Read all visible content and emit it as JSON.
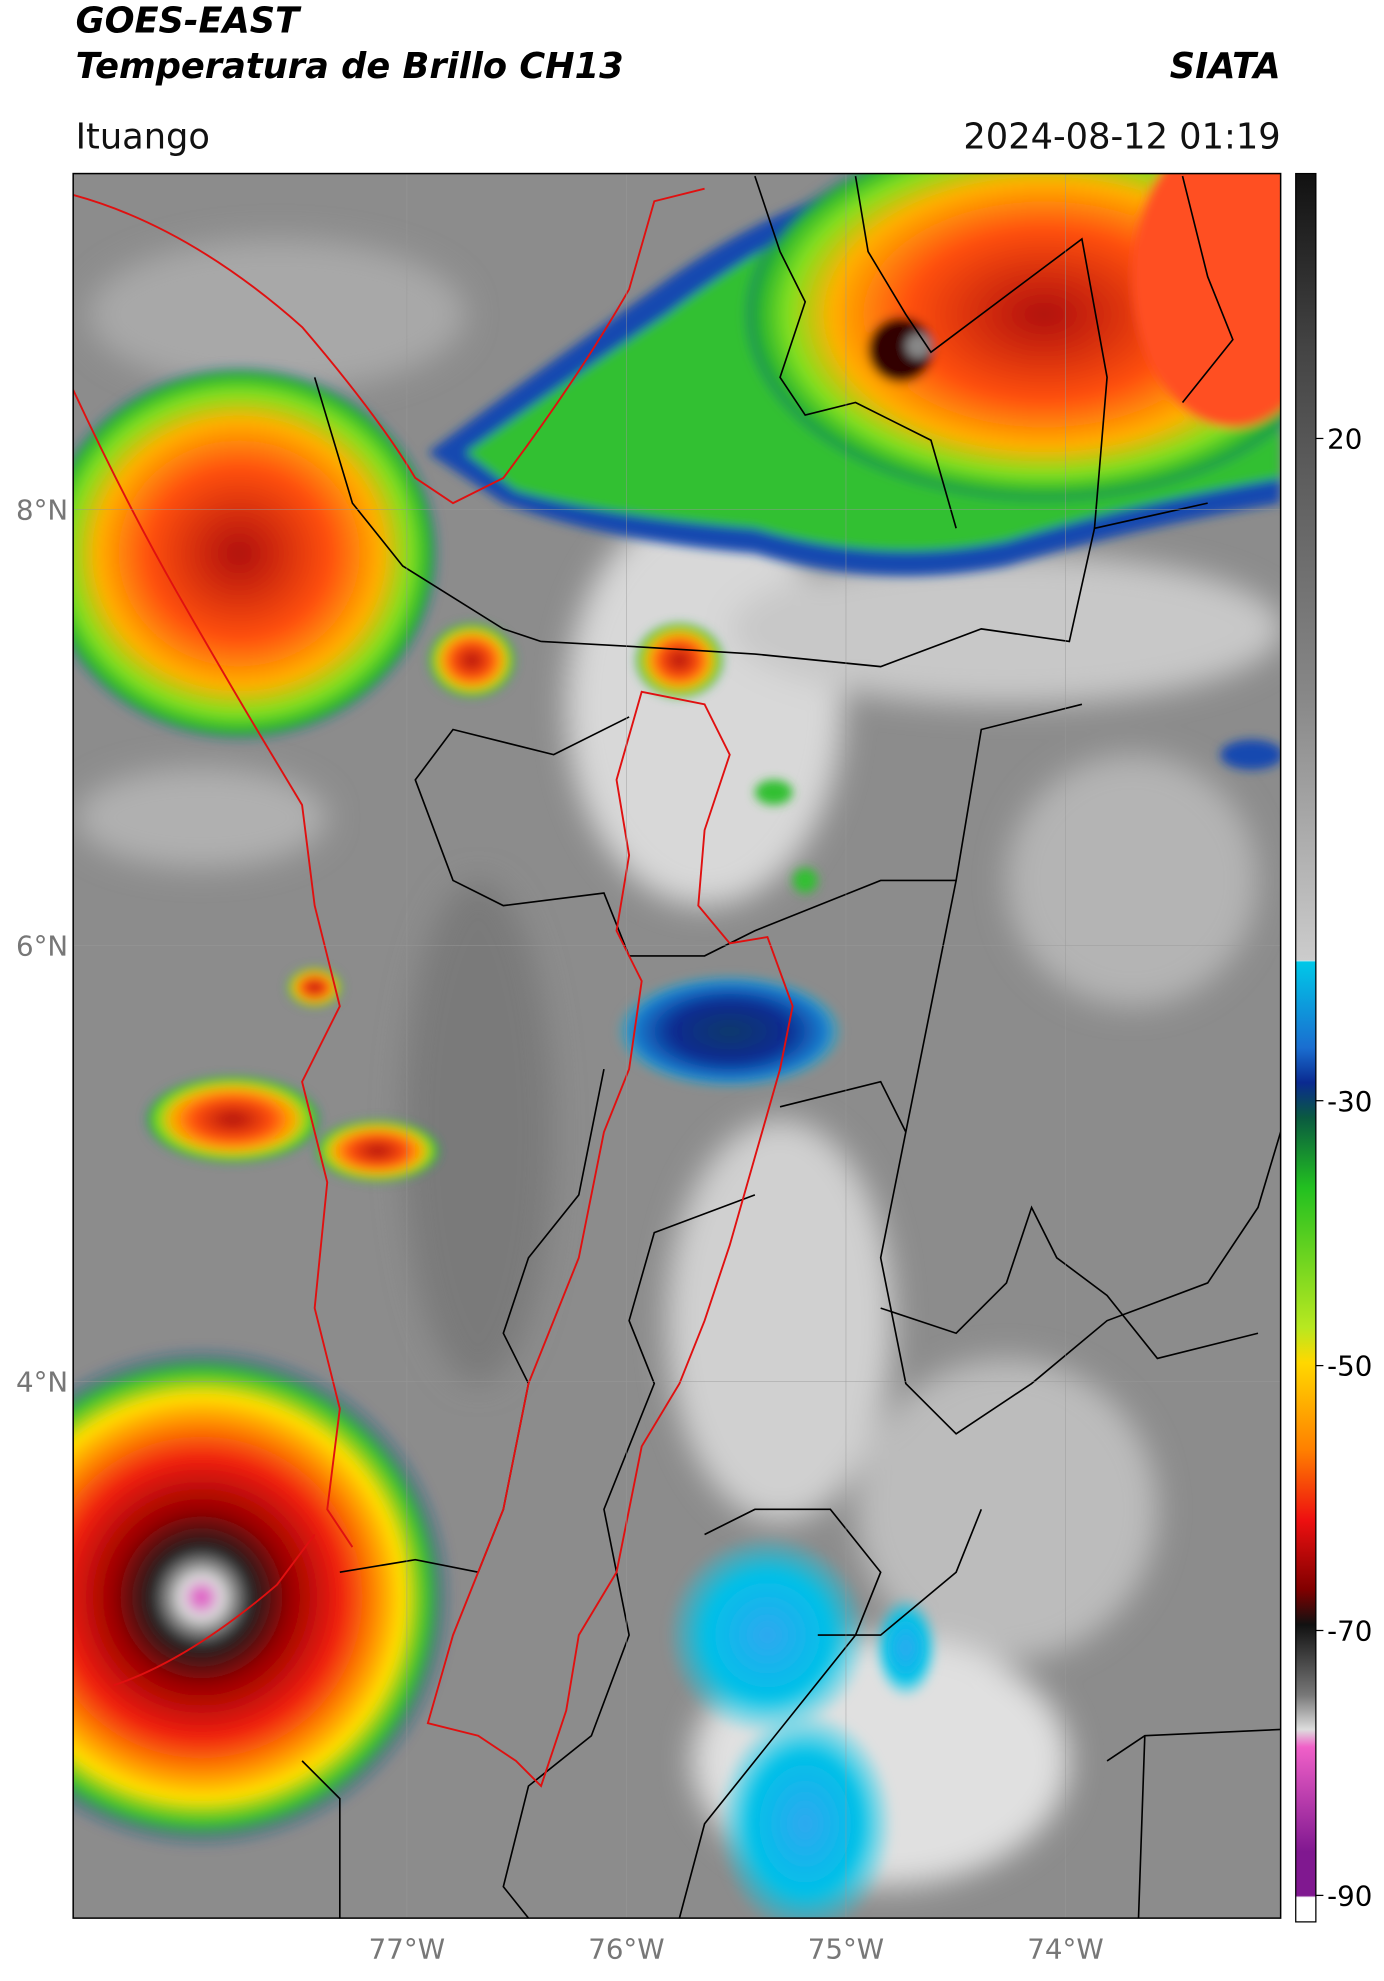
{
  "header": {
    "title_line1": "GOES-EAST",
    "title_line2": "Temperatura de Brillo CH13",
    "brand": "SIATA",
    "location": "Ituango",
    "timestamp": "2024-08-12 01:19"
  },
  "map": {
    "lonlim": [
      -78.52,
      -73.02
    ],
    "latlim": [
      1.54,
      9.54
    ],
    "lat_ticks": [
      {
        "value": 8,
        "label": "8°N"
      },
      {
        "value": 6,
        "label": "6°N"
      },
      {
        "value": 4,
        "label": "4°N"
      }
    ],
    "lon_ticks": [
      {
        "value": -77,
        "label": "77°W"
      },
      {
        "value": -76,
        "label": "76°W"
      },
      {
        "value": -75,
        "label": "75°W"
      },
      {
        "value": -74,
        "label": "74°W"
      }
    ]
  },
  "colorbar": {
    "lim": [
      -92,
      40
    ],
    "ticks": [
      20,
      -30,
      -50,
      -70,
      -90
    ]
  }
}
